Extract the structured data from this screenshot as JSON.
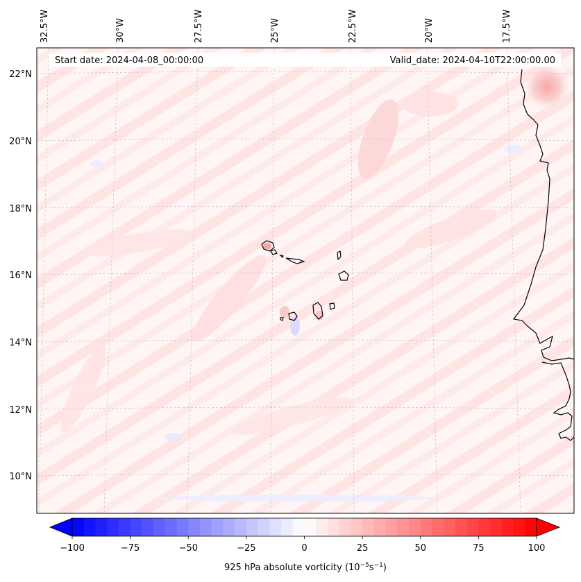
{
  "chart_data": {
    "type": "heatmap",
    "start_date_label": "Start date: 2024-04-08_00:00:00",
    "valid_date_label": "Valid_date: 2024-04-10T22:00:00.00",
    "lon_ticks": [
      "32.5°W",
      "30°W",
      "27.5°W",
      "25°W",
      "22.5°W",
      "20°W",
      "17.5°W"
    ],
    "lat_ticks": [
      "22°N",
      "20°N",
      "18°N",
      "16°N",
      "14°N",
      "12°N",
      "10°N"
    ],
    "colorbar": {
      "label_prefix": "925 hPa absolute vorticity (10",
      "label_exp1": "−5",
      "label_mid": "s",
      "label_exp2": "−1",
      "label_suffix": ")",
      "ticks": [
        "−100",
        "−75",
        "−50",
        "−25",
        "0",
        "25",
        "50",
        "75",
        "100"
      ],
      "range": [
        -100,
        100
      ],
      "colors": {
        "low": "#0000ff",
        "mid": "#ffffff",
        "high": "#ff0000"
      }
    },
    "colors": {
      "coast": "#000000",
      "grid": "#bbbbbb"
    }
  }
}
